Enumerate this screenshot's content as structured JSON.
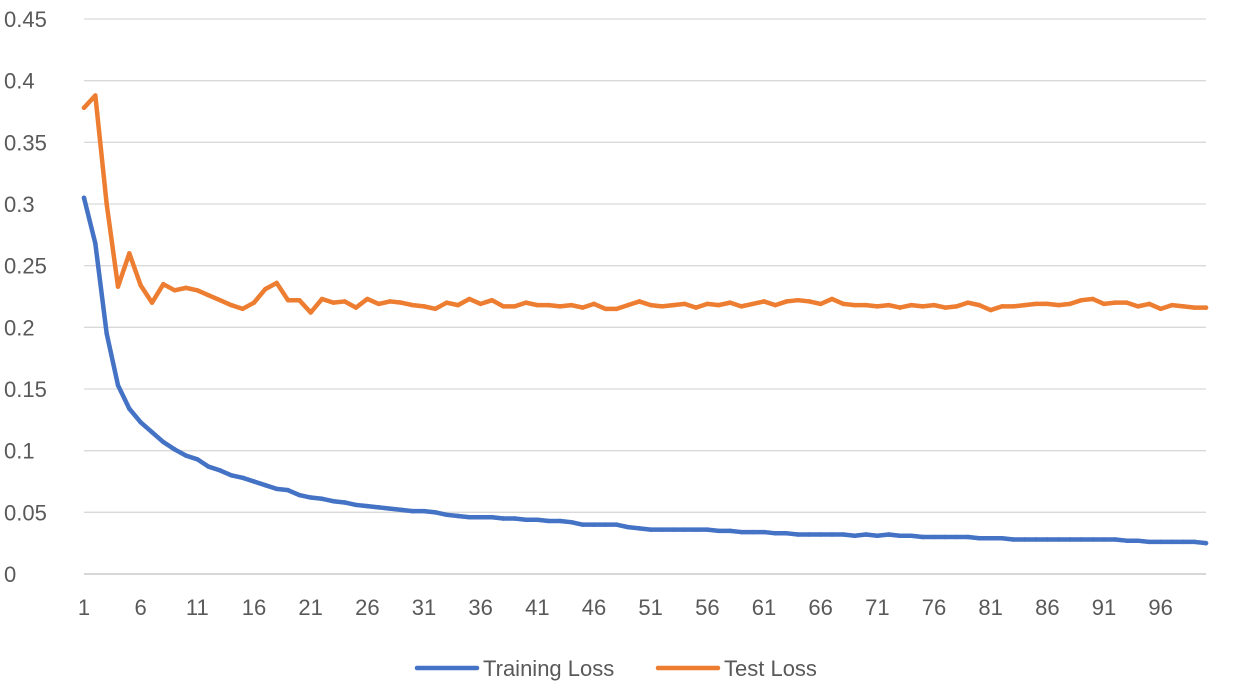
{
  "chart_data": {
    "type": "line",
    "title": "",
    "xlabel": "",
    "ylabel": "",
    "x_range": [
      1,
      100
    ],
    "x_tick_labels": [
      "1",
      "6",
      "11",
      "16",
      "21",
      "26",
      "31",
      "36",
      "41",
      "46",
      "51",
      "56",
      "61",
      "66",
      "71",
      "76",
      "81",
      "86",
      "91",
      "96"
    ],
    "y_tick_labels": [
      "0",
      "0.05",
      "0.1",
      "0.15",
      "0.2",
      "0.25",
      "0.3",
      "0.35",
      "0.4",
      "0.45"
    ],
    "ylim": [
      0,
      0.45
    ],
    "grid": "horizontal",
    "legend": "bottom",
    "series": [
      {
        "name": "Training Loss",
        "color": "#4472C4",
        "values": [
          0.305,
          0.268,
          0.195,
          0.153,
          0.134,
          0.123,
          0.115,
          0.107,
          0.101,
          0.096,
          0.093,
          0.087,
          0.084,
          0.08,
          0.078,
          0.075,
          0.072,
          0.069,
          0.068,
          0.064,
          0.062,
          0.061,
          0.059,
          0.058,
          0.056,
          0.055,
          0.054,
          0.053,
          0.052,
          0.051,
          0.051,
          0.05,
          0.048,
          0.047,
          0.046,
          0.046,
          0.046,
          0.045,
          0.045,
          0.044,
          0.044,
          0.043,
          0.043,
          0.042,
          0.04,
          0.04,
          0.04,
          0.04,
          0.038,
          0.037,
          0.036,
          0.036,
          0.036,
          0.036,
          0.036,
          0.036,
          0.035,
          0.035,
          0.034,
          0.034,
          0.034,
          0.033,
          0.033,
          0.032,
          0.032,
          0.032,
          0.032,
          0.032,
          0.031,
          0.032,
          0.031,
          0.032,
          0.031,
          0.031,
          0.03,
          0.03,
          0.03,
          0.03,
          0.03,
          0.029,
          0.029,
          0.029,
          0.028,
          0.028,
          0.028,
          0.028,
          0.028,
          0.028,
          0.028,
          0.028,
          0.028,
          0.028,
          0.027,
          0.027,
          0.026,
          0.026,
          0.026,
          0.026,
          0.026,
          0.025
        ]
      },
      {
        "name": "Test Loss",
        "color": "#ED7D31",
        "values": [
          0.378,
          0.388,
          0.3,
          0.233,
          0.26,
          0.234,
          0.22,
          0.235,
          0.23,
          0.232,
          0.23,
          0.226,
          0.222,
          0.218,
          0.215,
          0.22,
          0.231,
          0.236,
          0.222,
          0.222,
          0.212,
          0.223,
          0.22,
          0.221,
          0.216,
          0.223,
          0.219,
          0.221,
          0.22,
          0.218,
          0.217,
          0.215,
          0.22,
          0.218,
          0.223,
          0.219,
          0.222,
          0.217,
          0.217,
          0.22,
          0.218,
          0.218,
          0.217,
          0.218,
          0.216,
          0.219,
          0.215,
          0.215,
          0.218,
          0.221,
          0.218,
          0.217,
          0.218,
          0.219,
          0.216,
          0.219,
          0.218,
          0.22,
          0.217,
          0.219,
          0.221,
          0.218,
          0.221,
          0.222,
          0.221,
          0.219,
          0.223,
          0.219,
          0.218,
          0.218,
          0.217,
          0.218,
          0.216,
          0.218,
          0.217,
          0.218,
          0.216,
          0.217,
          0.22,
          0.218,
          0.214,
          0.217,
          0.217,
          0.218,
          0.219,
          0.219,
          0.218,
          0.219,
          0.222,
          0.223,
          0.219,
          0.22,
          0.22,
          0.217,
          0.219,
          0.215,
          0.218,
          0.217,
          0.216,
          0.216
        ]
      }
    ]
  }
}
